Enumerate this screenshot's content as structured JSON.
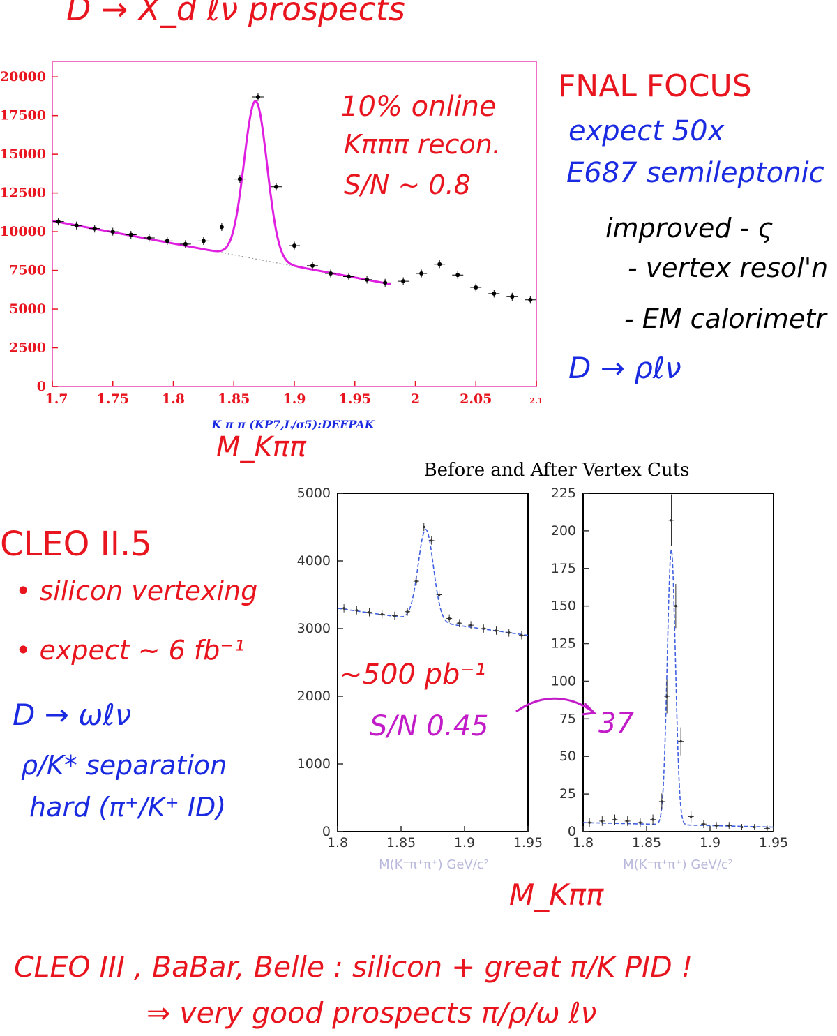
{
  "header": {
    "title": "D → X_d ℓν  prospects"
  },
  "fnal": {
    "heading": "FNAL  FOCUS",
    "line1": "expect  50x",
    "line2": "E687  semileptonic",
    "line3": "improved - ς",
    "line4": "- vertex resol'n",
    "line5": "- EM calorimetr",
    "line6": "D → ρℓν"
  },
  "cleo": {
    "heading": "CLEO  II.5",
    "item1": "• silicon  vertexing",
    "item2": "• expect ~ 6 fb⁻¹",
    "line1": "D → ωℓν",
    "line2": "ρ/K*  separation",
    "line3": "hard  (π⁺/K⁺ ID)"
  },
  "bottom": {
    "line1": "CLEO III , BaBar, Belle :  silicon + great π/K PID !",
    "line2": "⇒  very  good  prospects  π/ρ/ω ℓν"
  },
  "chart_data": [
    {
      "type": "scatter",
      "title": "",
      "xlabel": "K π π (KP7,L/σ5):DEEPAK",
      "xlabel_hand": "M_Kππ",
      "xlim": [
        1.7,
        2.1
      ],
      "ylim": [
        0,
        21000
      ],
      "x_ticks": [
        "1.7",
        "1.75",
        "1.8",
        "1.85",
        "1.9",
        "1.95",
        "2",
        "2.05",
        "2.1"
      ],
      "y_ticks": [
        "0",
        "2500",
        "5000",
        "7500",
        "10000",
        "12500",
        "15000",
        "17500",
        "20000"
      ],
      "annotations": [
        "10% online",
        "Kπππ recon.",
        "S/N ~ 0.8"
      ],
      "points": {
        "x": [
          1.705,
          1.72,
          1.735,
          1.75,
          1.765,
          1.78,
          1.795,
          1.81,
          1.825,
          1.84,
          1.855,
          1.87,
          1.885,
          1.9,
          1.915,
          1.93,
          1.945,
          1.96,
          1.975,
          1.99,
          2.005,
          2.02,
          2.035,
          2.05,
          2.065,
          2.08,
          2.095
        ],
        "y": [
          10650,
          10400,
          10200,
          10000,
          9800,
          9600,
          9400,
          9200,
          9400,
          10300,
          13400,
          18700,
          12900,
          9100,
          7800,
          7300,
          7100,
          6900,
          6700,
          6800,
          7300,
          7900,
          7200,
          6400,
          6000,
          5800,
          5600
        ]
      },
      "fit": {
        "mean": 1.868,
        "sigma": 0.0095,
        "amplitude": 10200,
        "bg_start": [
          1.7,
          10700
        ],
        "bg_end": [
          1.98,
          6600
        ],
        "range": [
          1.7,
          1.98
        ]
      }
    },
    {
      "type": "scatter",
      "title": "Before and After Vertex Cuts",
      "xlabel": "M(K⁻π⁺π⁺) GeV/c²",
      "xlim": [
        1.8,
        1.95
      ],
      "ylim": [
        0,
        5000
      ],
      "x_ticks": [
        "1.8",
        "1.85",
        "1.9",
        "1.95"
      ],
      "y_ticks": [
        "0",
        "1000",
        "2000",
        "3000",
        "4000",
        "5000"
      ],
      "annotations": [
        "~500 pb⁻¹",
        "S/N  0.45"
      ],
      "points": {
        "x": [
          1.805,
          1.815,
          1.825,
          1.835,
          1.845,
          1.855,
          1.862,
          1.868,
          1.874,
          1.88,
          1.888,
          1.896,
          1.905,
          1.915,
          1.925,
          1.935,
          1.945
        ],
        "y": [
          3300,
          3270,
          3240,
          3210,
          3190,
          3250,
          3700,
          4500,
          4300,
          3500,
          3150,
          3080,
          3050,
          3000,
          2970,
          2940,
          2900
        ]
      },
      "fit": {
        "mean": 1.8695,
        "sigma": 0.006,
        "amplitude": 1350,
        "bg_start": [
          1.8,
          3300
        ],
        "bg_end": [
          1.95,
          2900
        ]
      }
    },
    {
      "type": "scatter",
      "title": "",
      "xlabel": "M(K⁻π⁺π⁺) GeV/c²",
      "xlabel_hand": "M_Kππ",
      "xlim": [
        1.8,
        1.95
      ],
      "ylim": [
        0,
        225
      ],
      "x_ticks": [
        "1.8",
        "1.85",
        "1.9",
        "1.95"
      ],
      "y_ticks": [
        "0",
        "25",
        "50",
        "75",
        "100",
        "125",
        "150",
        "175",
        "200",
        "225"
      ],
      "annotations": [
        "37"
      ],
      "points": {
        "x": [
          1.805,
          1.815,
          1.825,
          1.835,
          1.845,
          1.855,
          1.862,
          1.866,
          1.8695,
          1.873,
          1.877,
          1.885,
          1.895,
          1.905,
          1.915,
          1.925,
          1.935,
          1.945
        ],
        "y": [
          6,
          7,
          8,
          7,
          6,
          8,
          20,
          90,
          207,
          150,
          60,
          10,
          5,
          4,
          4,
          3,
          3,
          2
        ]
      },
      "fit": {
        "mean": 1.8695,
        "sigma": 0.0032,
        "amplitude": 183,
        "bg_start": [
          1.8,
          6
        ],
        "bg_end": [
          1.95,
          3
        ]
      }
    }
  ]
}
